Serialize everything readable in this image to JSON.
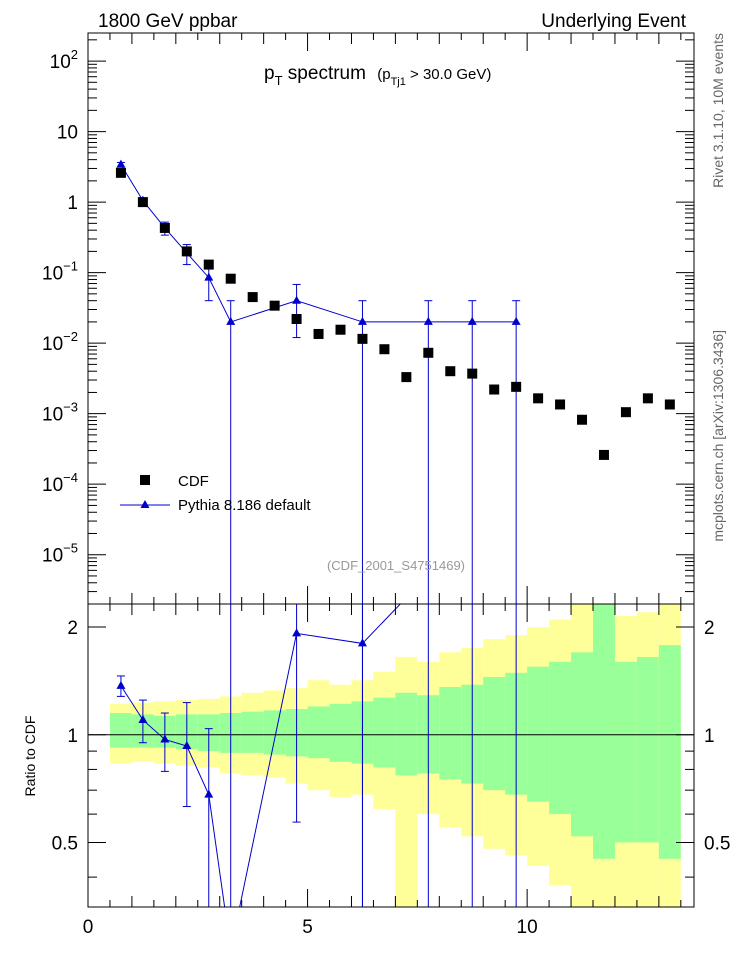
{
  "header": {
    "left": "1800 GeV ppbar",
    "right": "Underlying Event"
  },
  "side_labels": {
    "rivet": "Rivet 3.1.10, 10M events",
    "mcplots": "mcplots.cern.ch [arXiv:1306.3436]"
  },
  "colors": {
    "mc": "#0000cc",
    "data": "#000000",
    "band_inner": "#99ff99",
    "band_outer": "#ffff99"
  },
  "chart_data": [
    {
      "type": "scatter",
      "title_main": "p",
      "title_sub": "T",
      "title_after": " spectrum",
      "title_cut": "(p",
      "title_cut_sub": "Tj1",
      "title_cut_after": " > 30.0 GeV)",
      "analysis_id": "(CDF_2001_S4751469)",
      "yscale": "log",
      "xlim": [
        0,
        13.8
      ],
      "ylim": [
        2e-06,
        250
      ],
      "x_ticks": [
        0,
        5,
        10
      ],
      "y_tick_labels": [
        {
          "value": 100,
          "base": "10",
          "exp": "2"
        },
        {
          "value": 10,
          "base": "10",
          "exp": ""
        },
        {
          "value": 1,
          "base": "1",
          "exp": ""
        },
        {
          "value": 0.1,
          "base": "10",
          "exp": "−1"
        },
        {
          "value": 0.01,
          "base": "10",
          "exp": "−2"
        },
        {
          "value": 0.001,
          "base": "10",
          "exp": "−3"
        },
        {
          "value": 0.0001,
          "base": "10",
          "exp": "−4"
        },
        {
          "value": 1e-05,
          "base": "10",
          "exp": "−5"
        }
      ],
      "legend": {
        "position": "lower-left",
        "entries": [
          "CDF",
          "Pythia 8.186 default"
        ]
      },
      "series": [
        {
          "name": "CDF",
          "marker": "square",
          "x": [
            0.75,
            1.25,
            1.75,
            2.25,
            2.75,
            3.25,
            3.75,
            4.25,
            4.75,
            5.25,
            5.75,
            6.25,
            6.75,
            7.25,
            7.75,
            8.25,
            8.75,
            9.25,
            9.75,
            10.25,
            10.75,
            11.25,
            11.75,
            12.25,
            12.75,
            13.25
          ],
          "y": [
            2.6,
            1.0,
            0.43,
            0.2,
            0.13,
            0.082,
            0.045,
            0.034,
            0.022,
            0.0135,
            0.0155,
            0.0115,
            0.0082,
            0.0033,
            0.0073,
            0.004,
            0.0037,
            0.0022,
            0.0024,
            0.00165,
            0.00135,
            0.00082,
            0.00026,
            0.00105,
            0.00165,
            0.00135
          ]
        },
        {
          "name": "Pythia 8.186 default",
          "marker": "triangle",
          "x": [
            0.75,
            1.25,
            1.75,
            2.25,
            2.75,
            3.25,
            4.75,
            6.25,
            7.75,
            8.75,
            9.75
          ],
          "y": [
            3.4,
            1.05,
            0.43,
            0.19,
            0.085,
            0.02,
            0.04,
            0.02,
            0.02,
            0.02,
            0.02
          ],
          "err_low": [
            0.25,
            0.08,
            0.09,
            0.06,
            0.045,
            0.02,
            0.028,
            0.02,
            0.02,
            0.02,
            0.02
          ],
          "err_high": [
            0.25,
            0.08,
            0.09,
            0.06,
            0.045,
            0.02,
            0.028,
            0.02,
            0.02,
            0.02,
            0.02
          ]
        }
      ]
    },
    {
      "type": "line",
      "ylabel": "Ratio to CDF",
      "xlim": [
        0,
        13.8
      ],
      "ylim": [
        0.33,
        2.32
      ],
      "x_ticks": [
        0,
        5,
        10
      ],
      "y_ticks": [
        0.5,
        1,
        2
      ],
      "bands": {
        "edges": [
          0.5,
          1.0,
          1.5,
          2.0,
          2.5,
          3.0,
          3.5,
          4.0,
          4.5,
          5.0,
          5.5,
          6.0,
          6.5,
          7.0,
          7.5,
          8.0,
          8.5,
          9.0,
          9.5,
          10.0,
          10.5,
          11.0,
          11.5,
          12.0,
          12.5,
          13.0,
          13.5
        ],
        "inner_low": [
          0.92,
          0.92,
          0.92,
          0.91,
          0.9,
          0.89,
          0.89,
          0.88,
          0.87,
          0.86,
          0.84,
          0.83,
          0.81,
          0.77,
          0.78,
          0.75,
          0.73,
          0.7,
          0.68,
          0.65,
          0.6,
          0.52,
          0.45,
          0.5,
          0.5,
          0.45
        ],
        "inner_high": [
          1.15,
          1.14,
          1.13,
          1.14,
          1.14,
          1.15,
          1.16,
          1.17,
          1.18,
          1.2,
          1.22,
          1.24,
          1.27,
          1.31,
          1.29,
          1.36,
          1.38,
          1.45,
          1.49,
          1.55,
          1.6,
          1.7,
          2.32,
          1.6,
          1.65,
          1.78
        ],
        "outer_low": [
          0.83,
          0.84,
          0.83,
          0.82,
          0.81,
          0.78,
          0.77,
          0.76,
          0.73,
          0.7,
          0.67,
          0.68,
          0.62,
          0.33,
          0.6,
          0.55,
          0.52,
          0.48,
          0.46,
          0.43,
          0.38,
          0.33,
          0.33,
          0.33,
          0.33,
          0.33
        ],
        "outer_high": [
          1.22,
          1.23,
          1.24,
          1.25,
          1.26,
          1.28,
          1.31,
          1.33,
          1.35,
          1.42,
          1.38,
          1.42,
          1.5,
          1.65,
          1.6,
          1.7,
          1.75,
          1.85,
          1.9,
          2.0,
          2.1,
          2.32,
          2.32,
          2.15,
          2.2,
          2.32
        ]
      },
      "series": [
        {
          "name": "Pythia 8.186 default",
          "x": [
            0.75,
            1.25,
            1.75,
            2.25,
            2.75,
            3.25,
            4.75,
            6.25,
            7.75
          ],
          "y": [
            1.37,
            1.1,
            0.97,
            0.93,
            0.68,
            0.25,
            1.92,
            1.8,
            2.8
          ],
          "err_low": [
            0.09,
            0.15,
            0.18,
            0.3,
            0.36,
            0.0,
            1.35,
            1.7,
            0.0
          ],
          "err_high": [
            0.09,
            0.15,
            0.18,
            0.3,
            0.36,
            0.0,
            0.6,
            1.0,
            0.0
          ]
        }
      ]
    }
  ]
}
